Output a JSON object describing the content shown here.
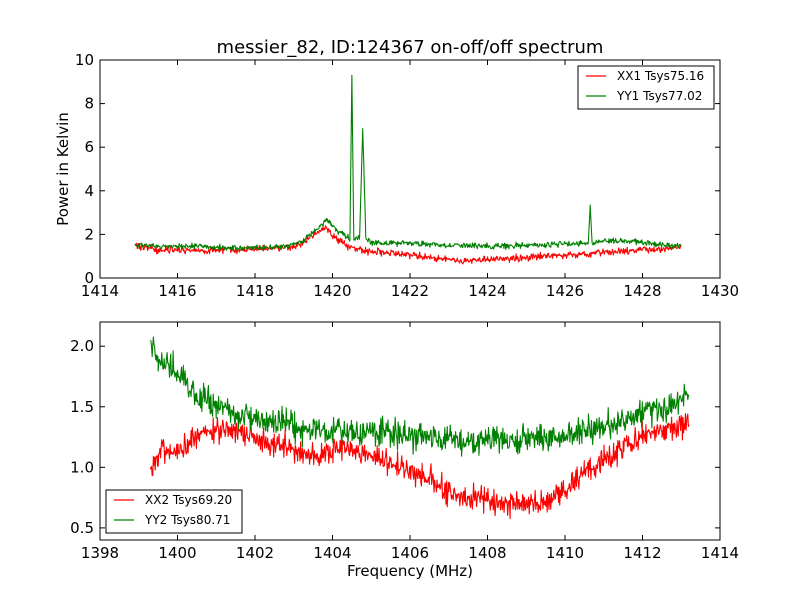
{
  "figure": {
    "title": "messier_82, ID:124367 on-off/off spectrum",
    "xlabel": "Frequency (MHz)"
  },
  "colors": {
    "red": "#ff0000",
    "green": "#008000",
    "axes": "#000000"
  },
  "chart_data": [
    {
      "type": "line",
      "title": "messier_82, ID:124367 on-off/off spectrum",
      "xlabel": "",
      "ylabel": "Power in Kelvin",
      "xlim": [
        1414,
        1430
      ],
      "ylim": [
        0,
        10
      ],
      "xticks": [
        "1414",
        "1416",
        "1418",
        "1420",
        "1422",
        "1424",
        "1426",
        "1428",
        "1430"
      ],
      "yticks": [
        "0",
        "2",
        "4",
        "6",
        "8",
        "10"
      ],
      "xtick_values": [
        1414,
        1416,
        1418,
        1420,
        1422,
        1424,
        1426,
        1428,
        1430
      ],
      "ytick_values": [
        0,
        2,
        4,
        6,
        8,
        10
      ],
      "legend": "top-right",
      "grid": false,
      "series": [
        {
          "name": "XX1 Tsys75.16",
          "color": "#ff0000",
          "x": [
            1414.9,
            1415.5,
            1416.0,
            1416.5,
            1417.0,
            1417.5,
            1418.0,
            1418.5,
            1419.0,
            1419.3,
            1419.6,
            1419.85,
            1420.1,
            1420.4,
            1420.7,
            1421.0,
            1421.5,
            1422.0,
            1422.5,
            1423.0,
            1423.5,
            1424.0,
            1424.5,
            1425.0,
            1425.5,
            1426.0,
            1426.5,
            1427.0,
            1427.5,
            1428.0,
            1428.5,
            1429.0
          ],
          "y": [
            1.5,
            1.3,
            1.3,
            1.25,
            1.3,
            1.3,
            1.35,
            1.35,
            1.45,
            1.7,
            2.05,
            2.3,
            1.8,
            1.45,
            1.3,
            1.2,
            1.15,
            1.05,
            0.95,
            0.85,
            0.8,
            0.85,
            0.9,
            0.95,
            1.0,
            1.05,
            1.1,
            1.2,
            1.2,
            1.3,
            1.3,
            1.45
          ],
          "noise": 0.12
        },
        {
          "name": "YY1 Tsys77.02",
          "color": "#008000",
          "x": [
            1414.9,
            1415.5,
            1416.0,
            1416.5,
            1417.0,
            1417.5,
            1418.0,
            1418.5,
            1419.0,
            1419.3,
            1419.6,
            1419.85,
            1420.1,
            1420.45,
            1420.5,
            1420.55,
            1420.7,
            1420.78,
            1420.86,
            1421.0,
            1421.5,
            1422.0,
            1422.5,
            1423.0,
            1423.5,
            1424.0,
            1424.5,
            1425.0,
            1425.5,
            1426.0,
            1426.6,
            1426.65,
            1426.7,
            1427.0,
            1427.5,
            1428.0,
            1428.5,
            1429.0
          ],
          "y": [
            1.5,
            1.45,
            1.45,
            1.45,
            1.4,
            1.35,
            1.4,
            1.4,
            1.55,
            1.8,
            2.25,
            2.65,
            2.2,
            1.8,
            9.3,
            1.75,
            1.9,
            6.85,
            1.85,
            1.6,
            1.6,
            1.6,
            1.55,
            1.5,
            1.5,
            1.45,
            1.45,
            1.5,
            1.5,
            1.6,
            1.6,
            3.35,
            1.6,
            1.7,
            1.7,
            1.65,
            1.5,
            1.5
          ],
          "noise": 0.1
        }
      ]
    },
    {
      "type": "line",
      "title": "",
      "xlabel": "Frequency (MHz)",
      "ylabel": "",
      "xlim": [
        1398,
        1414
      ],
      "ylim": [
        0.4,
        2.2
      ],
      "xticks": [
        "1398",
        "1400",
        "1402",
        "1404",
        "1406",
        "1408",
        "1410",
        "1412",
        "1414"
      ],
      "yticks": [
        "0.5",
        "1.0",
        "1.5",
        "2.0"
      ],
      "xtick_values": [
        1398,
        1400,
        1402,
        1404,
        1406,
        1408,
        1410,
        1412,
        1414
      ],
      "ytick_values": [
        0.5,
        1.0,
        1.5,
        2.0
      ],
      "legend": "bottom-left",
      "grid": false,
      "series": [
        {
          "name": "XX2 Tsys69.20",
          "color": "#ff0000",
          "x": [
            1399.3,
            1399.5,
            1400.0,
            1400.5,
            1401.0,
            1401.5,
            1402.0,
            1402.5,
            1403.0,
            1403.5,
            1404.0,
            1404.5,
            1405.0,
            1405.5,
            1406.0,
            1406.5,
            1407.0,
            1407.5,
            1408.0,
            1408.5,
            1409.0,
            1409.5,
            1410.0,
            1410.5,
            1411.0,
            1411.5,
            1412.0,
            1412.5,
            1413.0,
            1413.2
          ],
          "y": [
            1.0,
            1.1,
            1.15,
            1.25,
            1.3,
            1.3,
            1.25,
            1.2,
            1.15,
            1.1,
            1.15,
            1.15,
            1.1,
            1.05,
            0.95,
            0.9,
            0.8,
            0.75,
            0.72,
            0.7,
            0.7,
            0.72,
            0.8,
            0.95,
            1.05,
            1.15,
            1.25,
            1.3,
            1.35,
            1.35
          ],
          "noise": 0.08
        },
        {
          "name": "YY2 Tsys80.71",
          "color": "#008000",
          "x": [
            1399.3,
            1399.5,
            1400.0,
            1400.5,
            1401.0,
            1401.5,
            1402.0,
            1402.5,
            1403.0,
            1403.5,
            1404.0,
            1404.5,
            1405.0,
            1405.5,
            1406.0,
            1406.5,
            1407.0,
            1407.5,
            1408.0,
            1408.5,
            1409.0,
            1409.5,
            1410.0,
            1410.5,
            1411.0,
            1411.5,
            1412.0,
            1412.5,
            1413.0,
            1413.2
          ],
          "y": [
            2.05,
            1.9,
            1.8,
            1.6,
            1.5,
            1.45,
            1.4,
            1.38,
            1.35,
            1.3,
            1.3,
            1.28,
            1.3,
            1.3,
            1.28,
            1.25,
            1.23,
            1.22,
            1.22,
            1.22,
            1.23,
            1.24,
            1.25,
            1.3,
            1.35,
            1.4,
            1.45,
            1.5,
            1.55,
            1.6
          ],
          "noise": 0.09
        }
      ]
    }
  ]
}
